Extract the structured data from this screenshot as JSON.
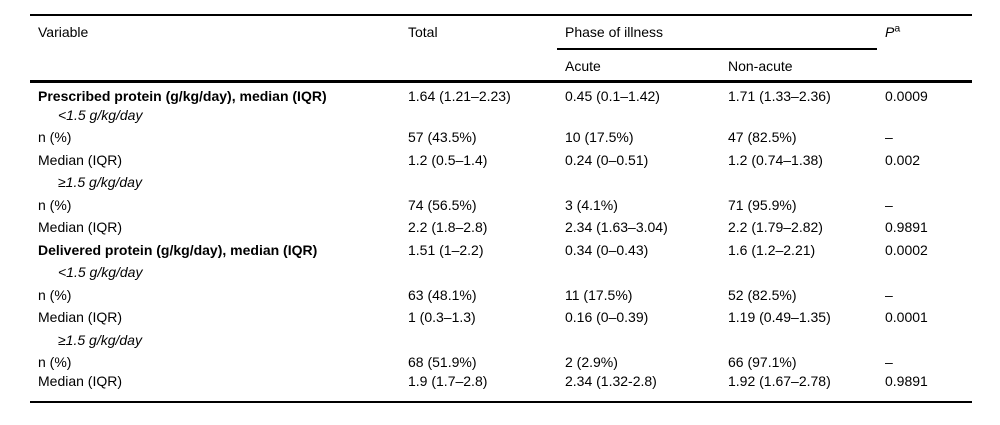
{
  "table": {
    "header": {
      "variable": "Variable",
      "total": "Total",
      "phase_group": "Phase of illness",
      "acute": "Acute",
      "non_acute": "Non-acute",
      "p_label": "P",
      "p_superscript": "a"
    },
    "rows": [
      {
        "style": "bold",
        "label": "Prescribed protein (g/kg/day), median (IQR)",
        "total": "1.64 (1.21–2.23)",
        "acute": "0.45 (0.1–1.42)",
        "non_acute": "1.71 (1.33–2.36)",
        "p": "0.0009"
      },
      {
        "style": "subgroup",
        "label": "<1.5 g/kg/day",
        "total": "",
        "acute": "",
        "non_acute": "",
        "p": ""
      },
      {
        "style": "normal",
        "label": "n (%)",
        "total": "57 (43.5%)",
        "acute": "10 (17.5%)",
        "non_acute": "47 (82.5%)",
        "p": "–"
      },
      {
        "style": "normal",
        "label": "Median (IQR)",
        "total": "1.2 (0.5–1.4)",
        "acute": "0.24 (0–0.51)",
        "non_acute": "1.2 (0.74–1.38)",
        "p": "0.002"
      },
      {
        "style": "subgroup",
        "label": "≥1.5 g/kg/day",
        "total": "",
        "acute": "",
        "non_acute": "",
        "p": ""
      },
      {
        "style": "normal",
        "label": "n (%)",
        "total": "74 (56.5%)",
        "acute": "3 (4.1%)",
        "non_acute": "71 (95.9%)",
        "p": "–"
      },
      {
        "style": "normal",
        "label": "Median (IQR)",
        "total": "2.2 (1.8–2.8)",
        "acute": "2.34 (1.63–3.04)",
        "non_acute": "2.2 (1.79–2.82)",
        "p": "0.9891"
      },
      {
        "style": "bold",
        "label": "Delivered protein (g/kg/day), median (IQR)",
        "total": "1.51 (1–2.2)",
        "acute": "0.34 (0–0.43)",
        "non_acute": "1.6 (1.2–2.21)",
        "p": "0.0002"
      },
      {
        "style": "subgroup",
        "label": "<1.5 g/kg/day",
        "total": "",
        "acute": "",
        "non_acute": "",
        "p": ""
      },
      {
        "style": "normal",
        "label": "n (%)",
        "total": "63 (48.1%)",
        "acute": "11 (17.5%)",
        "non_acute": "52 (82.5%)",
        "p": "–"
      },
      {
        "style": "normal",
        "label": "Median (IQR)",
        "total": "1 (0.3–1.3)",
        "acute": "0.16 (0–0.39)",
        "non_acute": "1.19 (0.49–1.35)",
        "p": "0.0001"
      },
      {
        "style": "subgroup",
        "label": "≥1.5 g/kg/day",
        "total": "",
        "acute": "",
        "non_acute": "",
        "p": ""
      },
      {
        "style": "normal",
        "label": "n (%)",
        "total": "68 (51.9%)",
        "acute": "2 (2.9%)",
        "non_acute": "66 (97.1%)",
        "p": "–"
      },
      {
        "style": "normal",
        "label": "Median (IQR)",
        "total": "1.9 (1.7–2.8)",
        "acute": "2.34 (1.32-2.8)",
        "non_acute": "1.92 (1.67–2.78)",
        "p": "0.9891"
      }
    ]
  },
  "colors": {
    "text": "#000000",
    "rule": "#000000",
    "background": "#ffffff"
  }
}
